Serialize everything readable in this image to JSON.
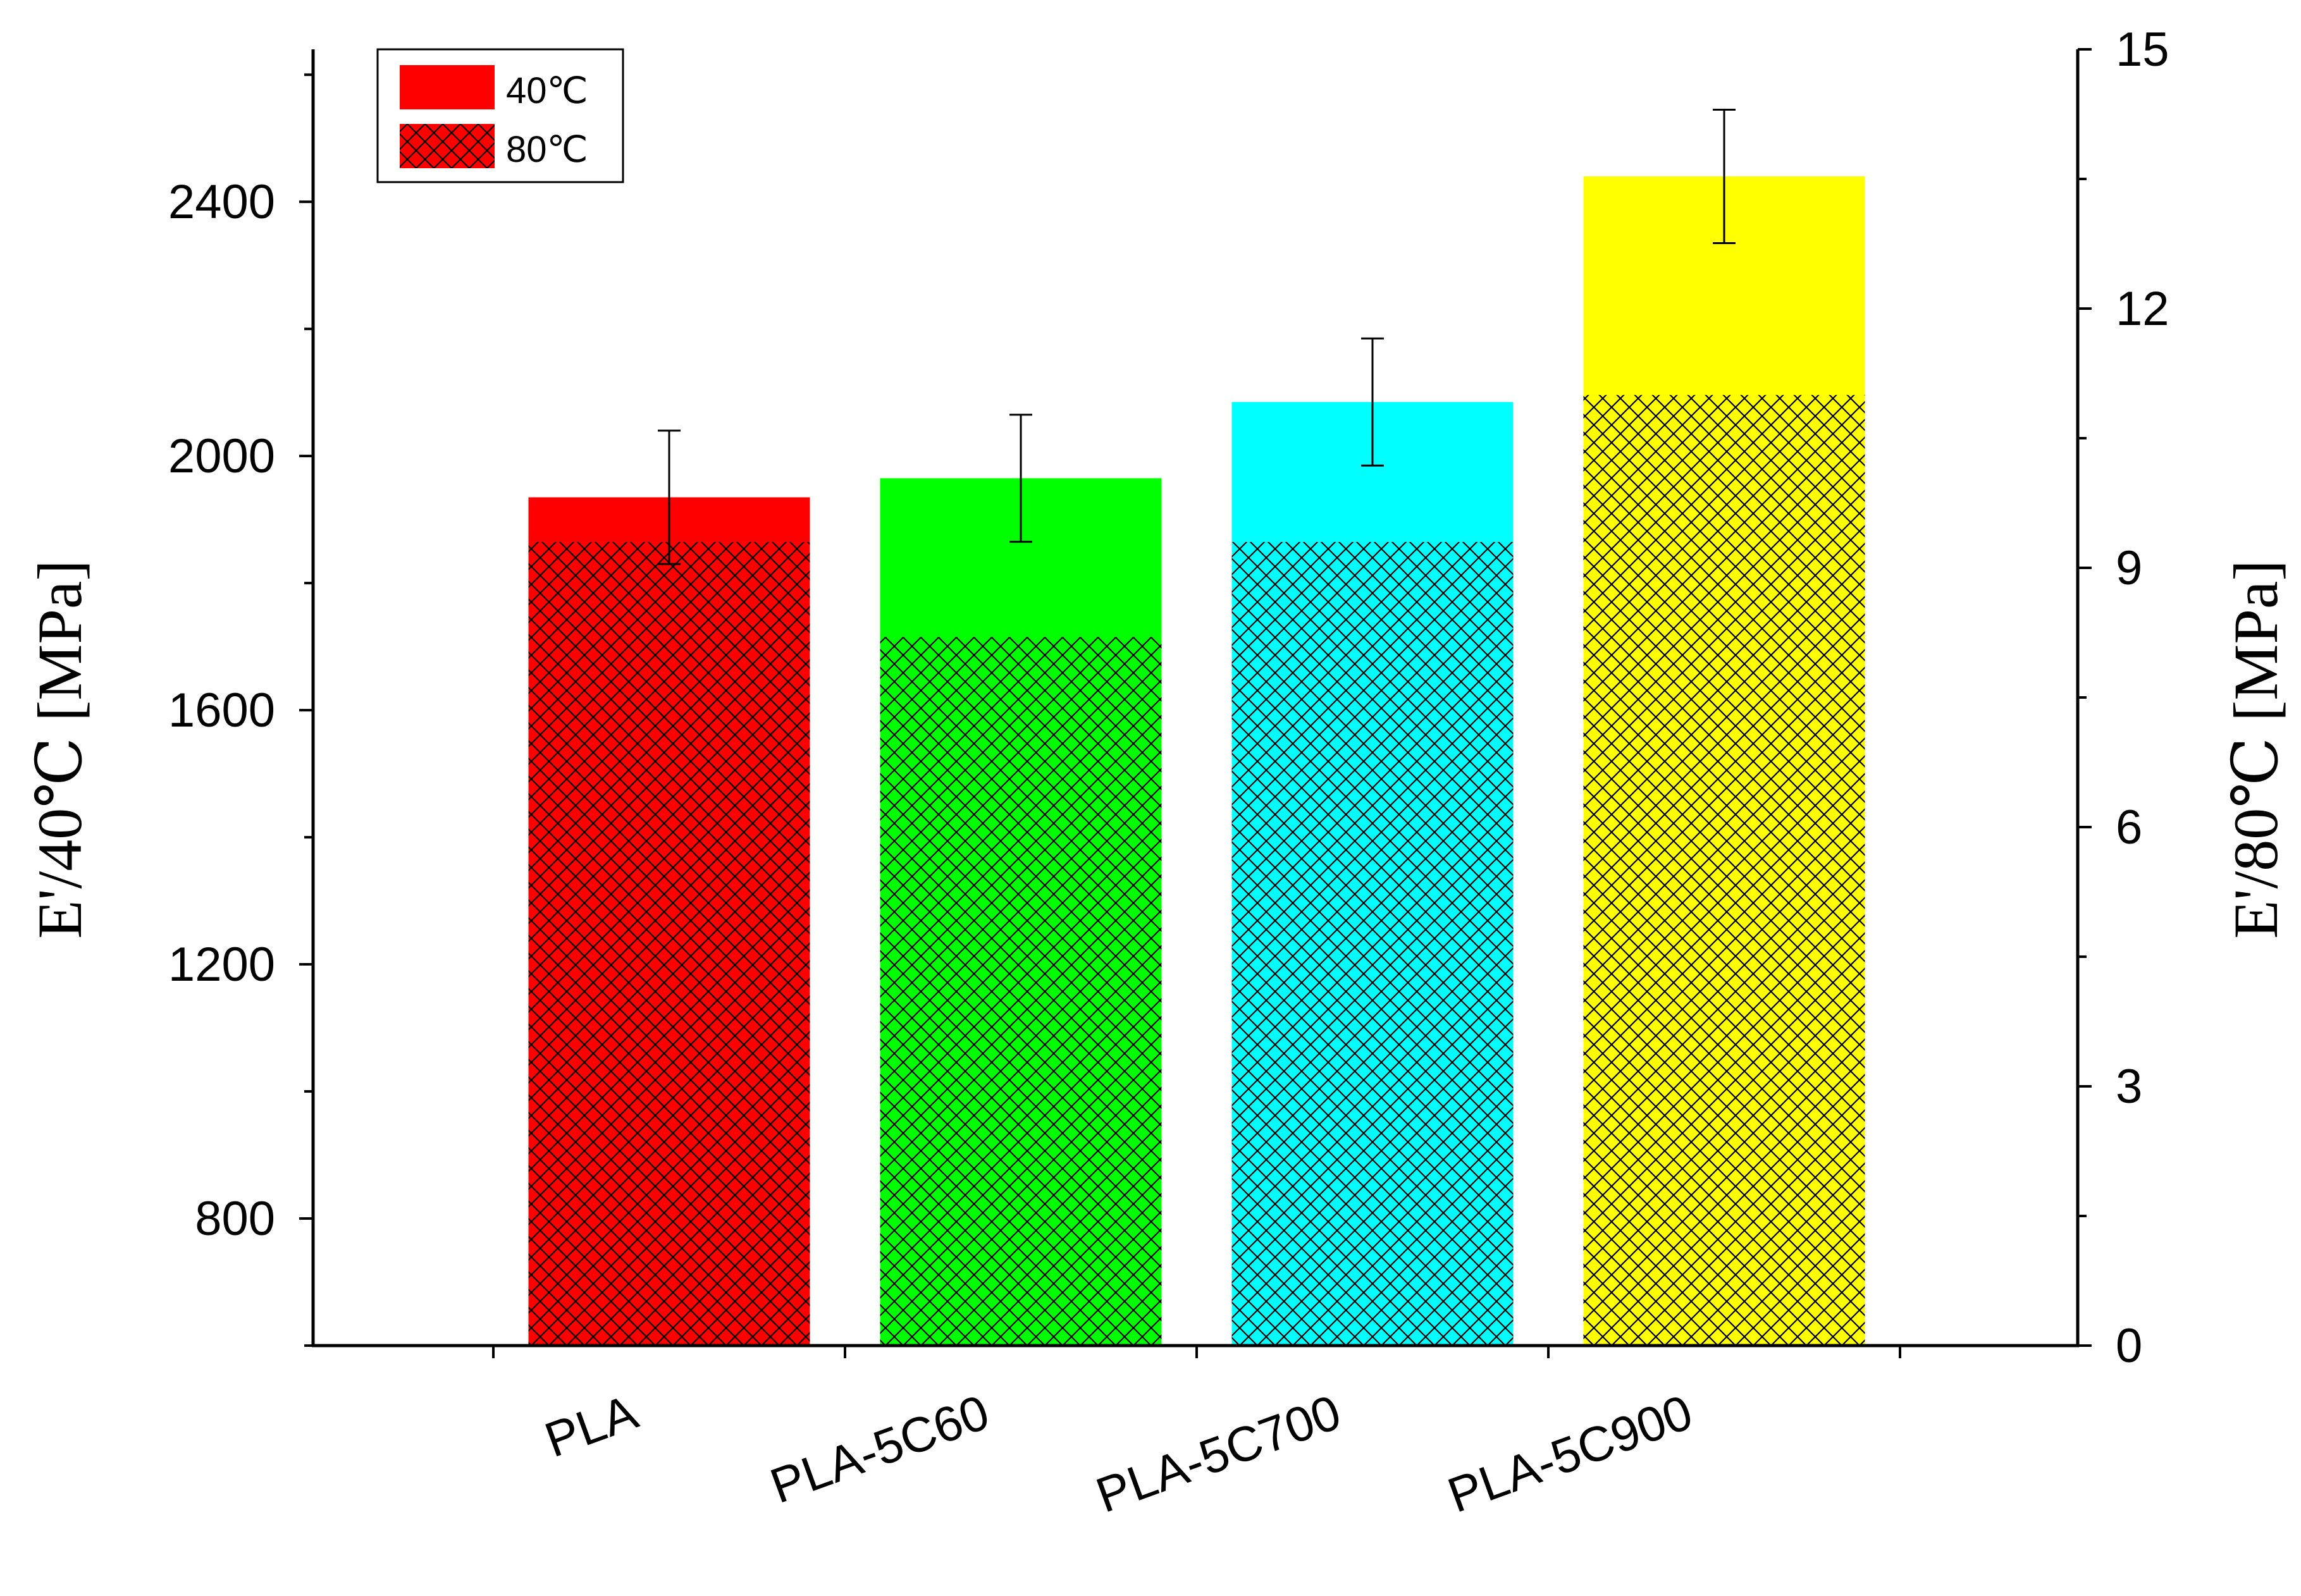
{
  "chart_data": {
    "type": "bar",
    "categories": [
      "PLA",
      "PLA-5C60",
      "PLA-5C700",
      "PLA-5C900"
    ],
    "series": [
      {
        "name": "40℃",
        "axis": "left",
        "values": [
          1935,
          1965,
          2085,
          2440
        ],
        "errors": [
          105,
          100,
          100,
          105
        ]
      },
      {
        "name": "80℃",
        "axis": "right",
        "values": [
          9.3,
          8.2,
          9.3,
          11.0
        ]
      }
    ],
    "bar_colors": [
      "#ff0000",
      "#00ff00",
      "#00ffff",
      "#ffff00"
    ],
    "hatch_color": "#000000",
    "y_left": {
      "label": "E'/40℃ [MPa]",
      "lim": [
        600,
        2640
      ],
      "ticks": [
        800,
        1200,
        1600,
        2000,
        2400
      ],
      "tick_labels": [
        "800",
        "1200",
        "1600",
        "2000",
        "2400"
      ]
    },
    "y_right": {
      "label": "E'/80℃ [MPa]",
      "lim": [
        0,
        15
      ],
      "ticks": [
        0,
        3,
        6,
        9,
        12,
        15
      ],
      "tick_labels": [
        "0",
        "3",
        "6",
        "9",
        "12",
        "15"
      ]
    },
    "legend": {
      "position": "top-left",
      "entries": [
        "40℃",
        "80℃"
      ]
    },
    "grid": false
  }
}
